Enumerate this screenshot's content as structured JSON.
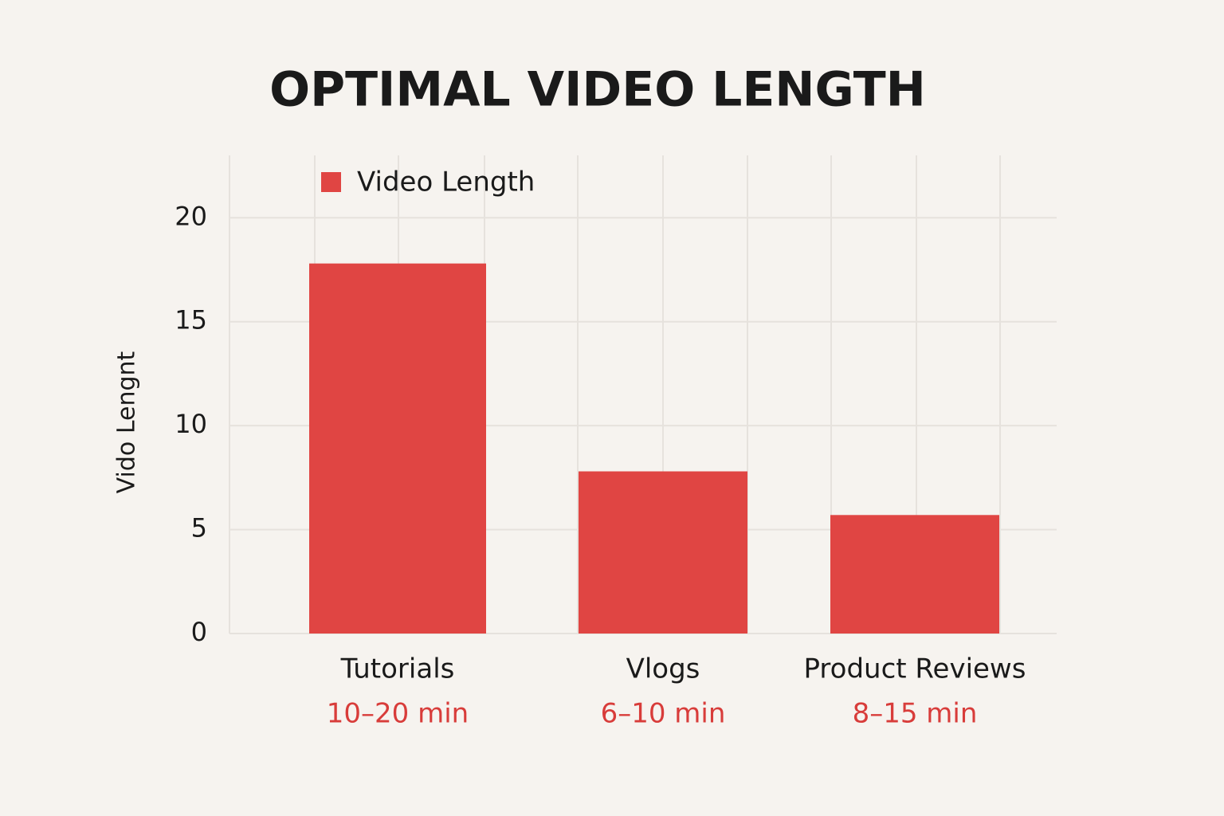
{
  "chart_data": {
    "type": "bar",
    "title": "OPTIMAL VIDEO LENGTH",
    "y_label": "Vido Lengnt",
    "categories": [
      "Tutorials",
      "Vlogs",
      "Product Reviews"
    ],
    "category_notes": [
      "10–20 min",
      "6–10 min",
      "8–15 min"
    ],
    "series": [
      {
        "name": "Video Length",
        "color": "#e04543",
        "values": [
          17.8,
          7.8,
          5.7
        ]
      }
    ],
    "ylim": [
      0,
      23
    ],
    "yticks": [
      0,
      5,
      10,
      15,
      20
    ],
    "grid": true,
    "legend": "top-left"
  }
}
